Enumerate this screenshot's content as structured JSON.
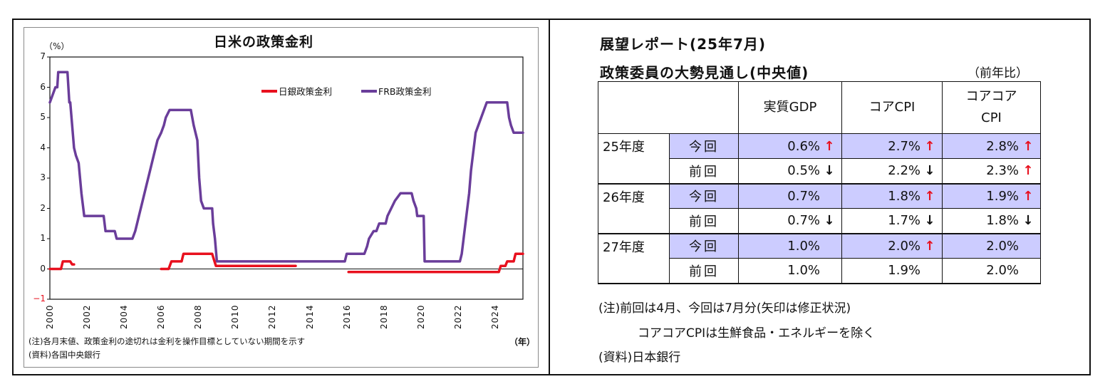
{
  "left_panel": {
    "title": "日米の政策金利",
    "unit": "（%）",
    "x_unit": "（年）",
    "note1": "(注)各月末値、政策金利の途切れは金利を操作目標としていない期間を示す",
    "note2": "(資料)各国中央銀行",
    "legend": [
      {
        "label": "日銀政策金利",
        "color": "#e8101e"
      },
      {
        "label": "FRB政策金利",
        "color": "#6a3d9a"
      }
    ]
  },
  "chart_data": {
    "type": "line",
    "title": "日米の政策金利",
    "xlabel": "（年）",
    "ylabel": "（%）",
    "ylim": [
      -1,
      7
    ],
    "xlim": [
      2000,
      2025.5
    ],
    "y_ticks": [
      "7",
      "6",
      "5",
      "4",
      "3",
      "2",
      "1",
      "0",
      "−1"
    ],
    "x_ticks": [
      "2000",
      "2002",
      "2004",
      "2006",
      "2008",
      "2010",
      "2012",
      "2014",
      "2016",
      "2018",
      "2020",
      "2022",
      "2024"
    ],
    "grid": false,
    "legend_position": "top-right",
    "series": [
      {
        "name": "日銀政策金利",
        "color": "#e8101e",
        "segments": [
          [
            [
              2000.0,
              0.0
            ],
            [
              2000.6,
              0.0
            ],
            [
              2000.7,
              0.25
            ],
            [
              2001.1,
              0.25
            ],
            [
              2001.2,
              0.15
            ],
            [
              2001.3,
              0.15
            ]
          ],
          [
            [
              2006.0,
              0.0
            ],
            [
              2006.4,
              0.0
            ],
            [
              2006.55,
              0.25
            ],
            [
              2007.1,
              0.25
            ],
            [
              2007.2,
              0.5
            ],
            [
              2008.75,
              0.5
            ],
            [
              2008.85,
              0.3
            ],
            [
              2008.95,
              0.1
            ],
            [
              2013.25,
              0.1
            ]
          ],
          [
            [
              2016.1,
              -0.1
            ],
            [
              2024.2,
              -0.1
            ],
            [
              2024.3,
              0.1
            ],
            [
              2024.55,
              0.1
            ],
            [
              2024.65,
              0.25
            ],
            [
              2025.0,
              0.25
            ],
            [
              2025.1,
              0.5
            ],
            [
              2025.5,
              0.5
            ]
          ]
        ]
      },
      {
        "name": "FRB政策金利",
        "color": "#6a3d9a",
        "segments": [
          [
            [
              2000.0,
              5.5
            ],
            [
              2000.15,
              5.75
            ],
            [
              2000.3,
              6.0
            ],
            [
              2000.4,
              6.0
            ],
            [
              2000.45,
              6.5
            ],
            [
              2000.95,
              6.5
            ],
            [
              2001.05,
              5.5
            ],
            [
              2001.1,
              5.5
            ],
            [
              2001.3,
              4.0
            ],
            [
              2001.4,
              3.75
            ],
            [
              2001.55,
              3.5
            ],
            [
              2001.7,
              2.5
            ],
            [
              2001.85,
              1.75
            ],
            [
              2002.9,
              1.75
            ],
            [
              2003.0,
              1.25
            ],
            [
              2003.5,
              1.25
            ],
            [
              2003.6,
              1.0
            ],
            [
              2004.45,
              1.0
            ],
            [
              2004.6,
              1.25
            ],
            [
              2004.7,
              1.5
            ],
            [
              2004.8,
              1.75
            ],
            [
              2005.0,
              2.25
            ],
            [
              2005.2,
              2.75
            ],
            [
              2005.4,
              3.25
            ],
            [
              2005.6,
              3.75
            ],
            [
              2005.8,
              4.25
            ],
            [
              2006.0,
              4.5
            ],
            [
              2006.15,
              4.75
            ],
            [
              2006.25,
              5.0
            ],
            [
              2006.45,
              5.25
            ],
            [
              2007.6,
              5.25
            ],
            [
              2007.75,
              4.75
            ],
            [
              2007.85,
              4.5
            ],
            [
              2007.95,
              4.25
            ],
            [
              2008.05,
              3.0
            ],
            [
              2008.15,
              2.25
            ],
            [
              2008.3,
              2.0
            ],
            [
              2008.75,
              2.0
            ],
            [
              2008.8,
              1.5
            ],
            [
              2008.9,
              1.0
            ],
            [
              2009.0,
              0.25
            ],
            [
              2015.9,
              0.25
            ],
            [
              2016.0,
              0.5
            ],
            [
              2016.95,
              0.5
            ],
            [
              2017.1,
              0.75
            ],
            [
              2017.2,
              1.0
            ],
            [
              2017.45,
              1.25
            ],
            [
              2017.6,
              1.25
            ],
            [
              2017.75,
              1.5
            ],
            [
              2018.1,
              1.5
            ],
            [
              2018.2,
              1.75
            ],
            [
              2018.4,
              2.0
            ],
            [
              2018.6,
              2.25
            ],
            [
              2018.9,
              2.5
            ],
            [
              2019.5,
              2.5
            ],
            [
              2019.6,
              2.25
            ],
            [
              2019.75,
              2.0
            ],
            [
              2019.8,
              1.75
            ],
            [
              2020.15,
              1.75
            ],
            [
              2020.2,
              0.25
            ],
            [
              2022.1,
              0.25
            ],
            [
              2022.2,
              0.5
            ],
            [
              2022.3,
              1.0
            ],
            [
              2022.45,
              1.75
            ],
            [
              2022.6,
              2.5
            ],
            [
              2022.7,
              3.25
            ],
            [
              2022.85,
              4.0
            ],
            [
              2022.95,
              4.5
            ],
            [
              2023.1,
              4.75
            ],
            [
              2023.25,
              5.0
            ],
            [
              2023.4,
              5.25
            ],
            [
              2023.55,
              5.5
            ],
            [
              2024.65,
              5.5
            ],
            [
              2024.75,
              5.0
            ],
            [
              2024.85,
              4.75
            ],
            [
              2025.0,
              4.5
            ],
            [
              2025.5,
              4.5
            ]
          ]
        ]
      }
    ],
    "annotations": [
      "(注)各月末値、政策金利の途切れは金利を操作目標としていない期間を示す",
      "(資料)各国中央銀行"
    ]
  },
  "right_panel": {
    "title1": "展望レポート(25年7月)",
    "title2": "政策委員の大勢見通し(中央値)",
    "yoy": "（前年比）",
    "columns": [
      "実質GDP",
      "コアCPI",
      "コアコア\nCPI"
    ],
    "col_header_lines": [
      [
        "実質GDP"
      ],
      [
        "コアCPI"
      ],
      [
        "コアコア",
        "CPI"
      ]
    ],
    "groups": [
      {
        "year": "25年度",
        "rows": [
          {
            "kind": "今回",
            "highlight": true,
            "cells": [
              {
                "value": "0.6%",
                "arrow": "up"
              },
              {
                "value": "2.7%",
                "arrow": "up"
              },
              {
                "value": "2.8%",
                "arrow": "up"
              }
            ]
          },
          {
            "kind": "前回",
            "highlight": false,
            "cells": [
              {
                "value": "0.5%",
                "arrow": "down"
              },
              {
                "value": "2.2%",
                "arrow": "down"
              },
              {
                "value": "2.3%",
                "arrow": "up"
              }
            ]
          }
        ]
      },
      {
        "year": "26年度",
        "rows": [
          {
            "kind": "今回",
            "highlight": true,
            "cells": [
              {
                "value": "0.7%",
                "arrow": "none"
              },
              {
                "value": "1.8%",
                "arrow": "up"
              },
              {
                "value": "1.9%",
                "arrow": "up"
              }
            ]
          },
          {
            "kind": "前回",
            "highlight": false,
            "cells": [
              {
                "value": "0.7%",
                "arrow": "down"
              },
              {
                "value": "1.7%",
                "arrow": "down"
              },
              {
                "value": "1.8%",
                "arrow": "down"
              }
            ]
          }
        ]
      },
      {
        "year": "27年度",
        "rows": [
          {
            "kind": "今回",
            "highlight": true,
            "cells": [
              {
                "value": "1.0%",
                "arrow": "none"
              },
              {
                "value": "2.0%",
                "arrow": "up"
              },
              {
                "value": "2.0%",
                "arrow": "none"
              }
            ]
          },
          {
            "kind": "前回",
            "highlight": false,
            "cells": [
              {
                "value": "1.0%",
                "arrow": "none"
              },
              {
                "value": "1.9%",
                "arrow": "none"
              },
              {
                "value": "2.0%",
                "arrow": "none"
              }
            ]
          }
        ]
      }
    ],
    "note1": "(注)前回は4月、今回は7月分(矢印は修正状況)",
    "note2": "コアコアCPIは生鮮食品・エネルギーを除く",
    "source": "(資料)日本銀行",
    "colors": {
      "highlight": "#ccccff",
      "up_arrow": "#e8101e",
      "down_arrow": "#111111"
    }
  }
}
